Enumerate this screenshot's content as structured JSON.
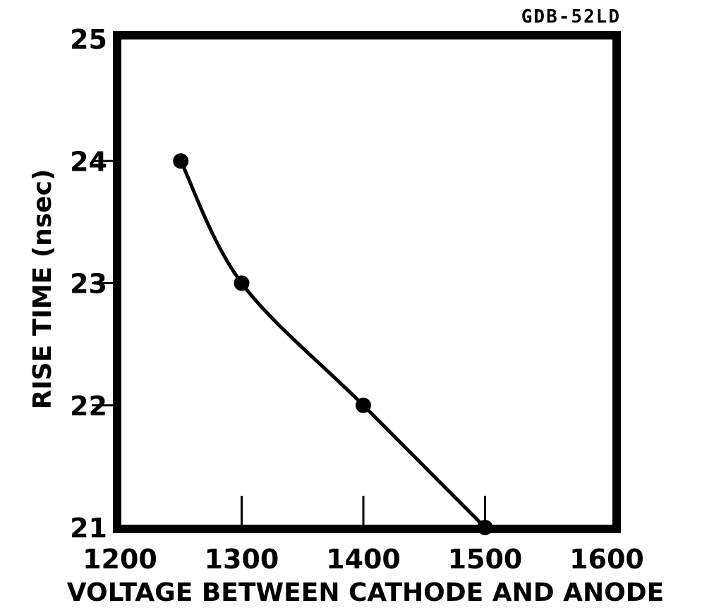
{
  "figure_id": "GDB-52LD",
  "chart_data": {
    "type": "line",
    "title": "",
    "xlabel": "VOLTAGE BETWEEN CATHODE AND ANODE",
    "ylabel": "RISE TIME (nsec)",
    "xlim": [
      1200,
      1600
    ],
    "ylim": [
      21,
      25
    ],
    "x_ticks": [
      1200,
      1300,
      1400,
      1500,
      1600
    ],
    "y_ticks": [
      21,
      22,
      23,
      24,
      25
    ],
    "grid": false,
    "series": [
      {
        "x": [
          1250,
          1300,
          1400,
          1500
        ],
        "y": [
          24,
          23,
          22,
          21
        ],
        "color": "#000000",
        "markers": true,
        "smooth": true
      }
    ]
  }
}
